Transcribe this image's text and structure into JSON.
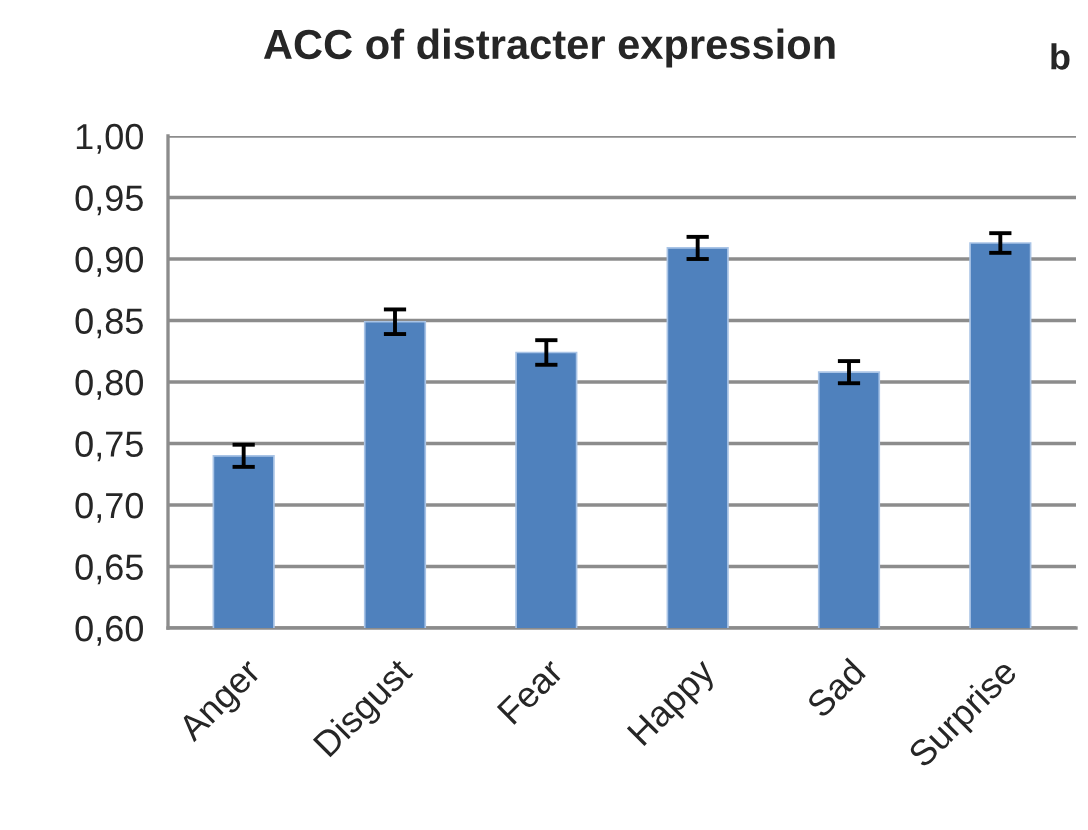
{
  "chart_data": {
    "type": "bar",
    "title": "ACC of distracter expression",
    "annotations": [
      "b"
    ],
    "categories": [
      "Anger",
      "Disgust",
      "Fear",
      "Happy",
      "Sad",
      "Surprise"
    ],
    "values": [
      0.74,
      0.849,
      0.824,
      0.909,
      0.808,
      0.913
    ],
    "errors": [
      0.009,
      0.01,
      0.01,
      0.009,
      0.009,
      0.008
    ],
    "color": "#4f81bd",
    "ylim": [
      0.6,
      1.0
    ],
    "yticks": [
      {
        "value": 0.6,
        "label": "0,60"
      },
      {
        "value": 0.65,
        "label": "0,65"
      },
      {
        "value": 0.7,
        "label": "0,70"
      },
      {
        "value": 0.75,
        "label": "0,75"
      },
      {
        "value": 0.8,
        "label": "0,80"
      },
      {
        "value": 0.85,
        "label": "0,85"
      },
      {
        "value": 0.9,
        "label": "0,90"
      },
      {
        "value": 0.95,
        "label": "0,95"
      },
      {
        "value": 1.0,
        "label": "1,00"
      }
    ],
    "grid": "y"
  }
}
